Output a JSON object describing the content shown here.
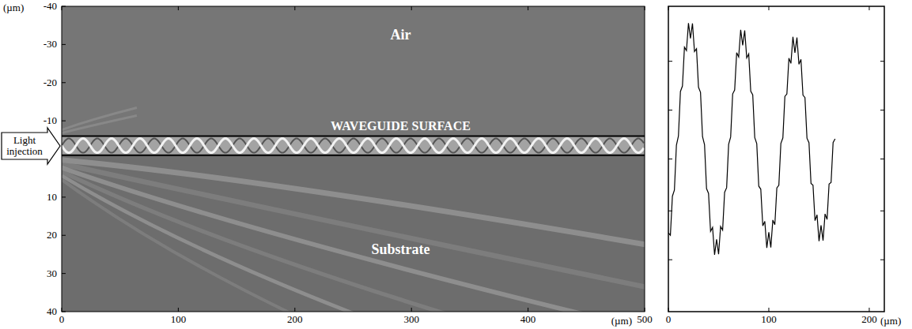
{
  "chart_data": [
    {
      "type": "field_map",
      "x_label": "(µm)",
      "y_label": "(µm)",
      "xlim": [
        0,
        500
      ],
      "xticks": [
        0,
        100,
        200,
        300,
        400,
        500
      ],
      "ylim": [
        40,
        -40
      ],
      "yticks": [
        -40,
        -30,
        -20,
        -10,
        10,
        20,
        30,
        40
      ],
      "waveguide": [
        -6,
        -1
      ],
      "annotations": [
        "Air",
        "WAVEGUIDE SURFACE",
        "Substrate"
      ],
      "light_label": "Light injection"
    },
    {
      "type": "line",
      "x_label": "(µm)",
      "xlim": [
        0,
        215
      ],
      "xticks": [
        0,
        100,
        200
      ],
      "ylim": [
        0,
        10
      ],
      "yticks": [
        1.7,
        3.3,
        5,
        6.6,
        8.2
      ],
      "tick_labels": "x",
      "x": [
        0,
        2,
        4,
        6,
        8,
        10,
        12,
        14,
        16,
        18,
        20,
        22,
        24,
        26,
        28,
        30,
        32,
        34,
        36,
        38,
        40,
        42,
        44,
        46,
        48,
        50,
        52,
        54,
        56,
        58,
        60,
        62,
        64,
        66,
        68,
        70,
        72,
        74,
        76,
        78,
        80,
        82,
        84,
        86,
        88,
        90,
        92,
        94,
        96,
        98,
        100,
        102,
        104,
        106,
        108,
        110,
        112,
        114,
        116,
        118,
        120,
        122,
        124,
        126,
        128,
        130,
        132,
        134,
        136,
        138,
        140,
        142,
        144,
        146,
        148,
        150,
        152,
        154,
        156,
        158,
        160,
        162,
        164,
        166
      ],
      "series": [
        {
          "color": "#000000",
          "values": [
            2.58,
            2.5,
            3.78,
            3.98,
            5.45,
            5.75,
            7.21,
            7.39,
            8.66,
            8.55,
            9.45,
            8.95,
            9.44,
            8.52,
            8.61,
            7.35,
            7.18,
            5.73,
            5.47,
            4.03,
            3.87,
            2.63,
            2.76,
            1.86,
            2.37,
            1.88,
            2.79,
            2.67,
            3.91,
            4.06,
            5.48,
            5.72,
            7.13,
            7.26,
            8.48,
            8.34,
            9.23,
            8.72,
            9.21,
            8.31,
            8.44,
            7.22,
            7.1,
            5.7,
            5.5,
            4.11,
            4.01,
            2.81,
            2.96,
            2.09,
            2.6,
            2.1,
            3.0,
            2.85,
            4.05,
            4.14,
            5.51,
            5.69,
            7.05,
            7.13,
            8.3,
            8.13,
            9.0,
            8.48,
            8.98,
            8.1,
            8.26,
            7.09,
            7.01,
            5.68,
            5.53,
            4.2,
            4.14,
            2.98,
            3.17,
            2.31,
            2.83,
            2.33,
            3.2,
            3.02,
            4.18,
            4.23,
            5.54,
            5.66
          ]
        }
      ]
    }
  ]
}
